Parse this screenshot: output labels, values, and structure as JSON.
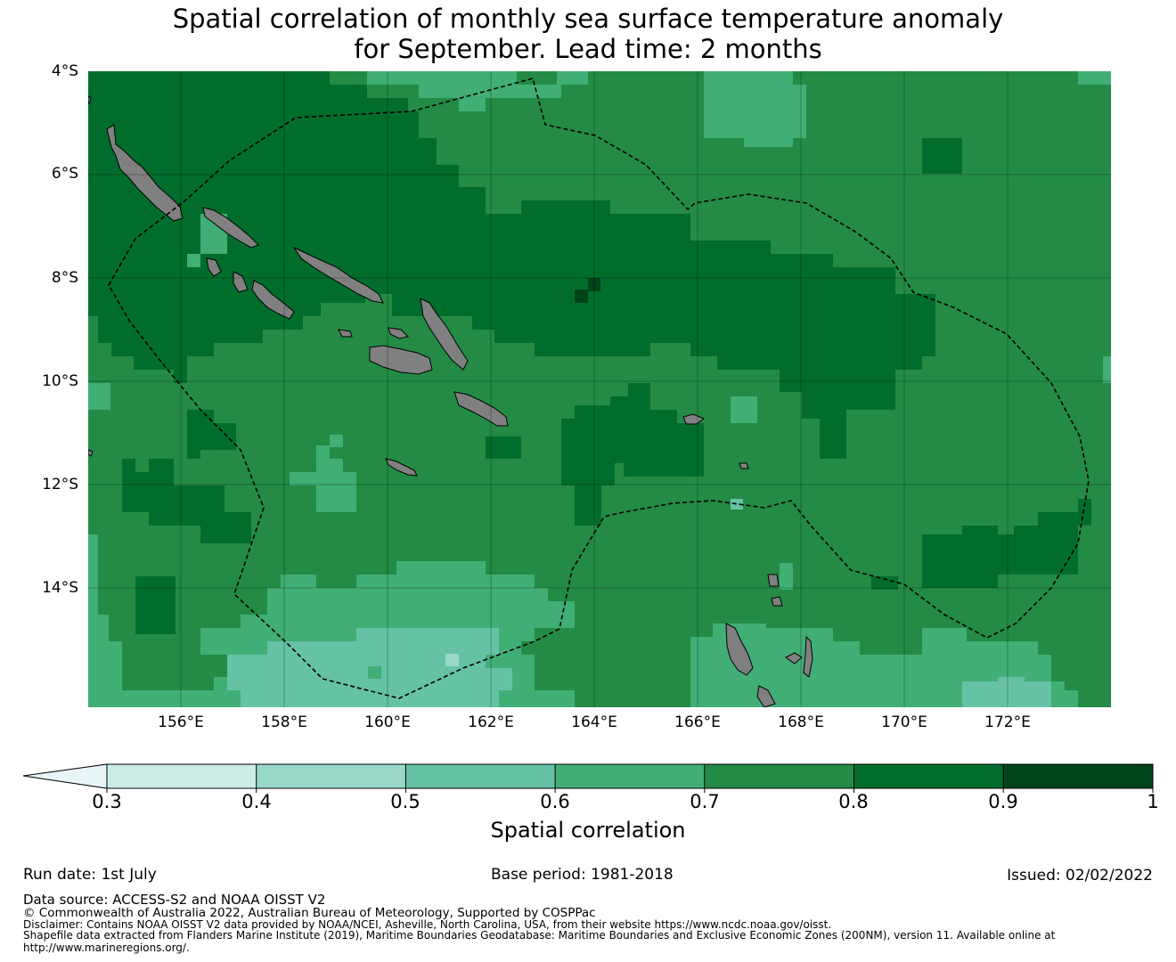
{
  "title": {
    "line1": "Spatial correlation of monthly sea surface temperature anomaly",
    "line2": "for September. Lead time: 2 months"
  },
  "map": {
    "lat_labels": [
      "4°S",
      "6°S",
      "8°S",
      "10°S",
      "12°S",
      "14°S"
    ],
    "lon_labels": [
      "156°E",
      "158°E",
      "160°E",
      "162°E",
      "164°E",
      "166°E",
      "168°E",
      "170°E",
      "172°E"
    ],
    "extent": {
      "lon_min": 154.2,
      "lon_max": 174.0,
      "lat_min": -16.3,
      "lat_max": -4.0
    },
    "land_color": "#808080",
    "dominant_correlation": "0.7-0.8",
    "eez_boundary": "dashed black"
  },
  "colorbar": {
    "title": "Spatial correlation",
    "ticks": [
      "0.3",
      "0.4",
      "0.5",
      "0.6",
      "0.7",
      "0.8",
      "0.9",
      "1"
    ],
    "under_color": "#e8f5f8",
    "colors": [
      "#ccece6",
      "#99d8c9",
      "#66c2a4",
      "#41ae76",
      "#238b45",
      "#006d2c",
      "#00441b"
    ]
  },
  "footer": {
    "run_date": "Run date: 1st July",
    "base_period": "Base period: 1981-2018",
    "issued": "Issued: 02/02/2022",
    "data_source": "Data source: ACCESS-S2 and NOAA OISST V2",
    "copyright": "© Commonwealth of Australia 2022, Australian Bureau of Meteorology, Supported by COSPPac",
    "disclaimer": "Disclaimer: Contains NOAA OISST V2 data provided by NOAA/NCEI, Asheville, North Carolina, USA, from their website https://www.ncdc.noaa.gov/oisst.",
    "shapefile_1": "Shapefile data extracted from Flanders Marine Institute (2019), Maritime Boundaries Geodatabase: Maritime Boundaries and Exclusive Economic Zones (200NM), version 11. Available online at",
    "shapefile_2": "http://www.marineregions.org/."
  }
}
